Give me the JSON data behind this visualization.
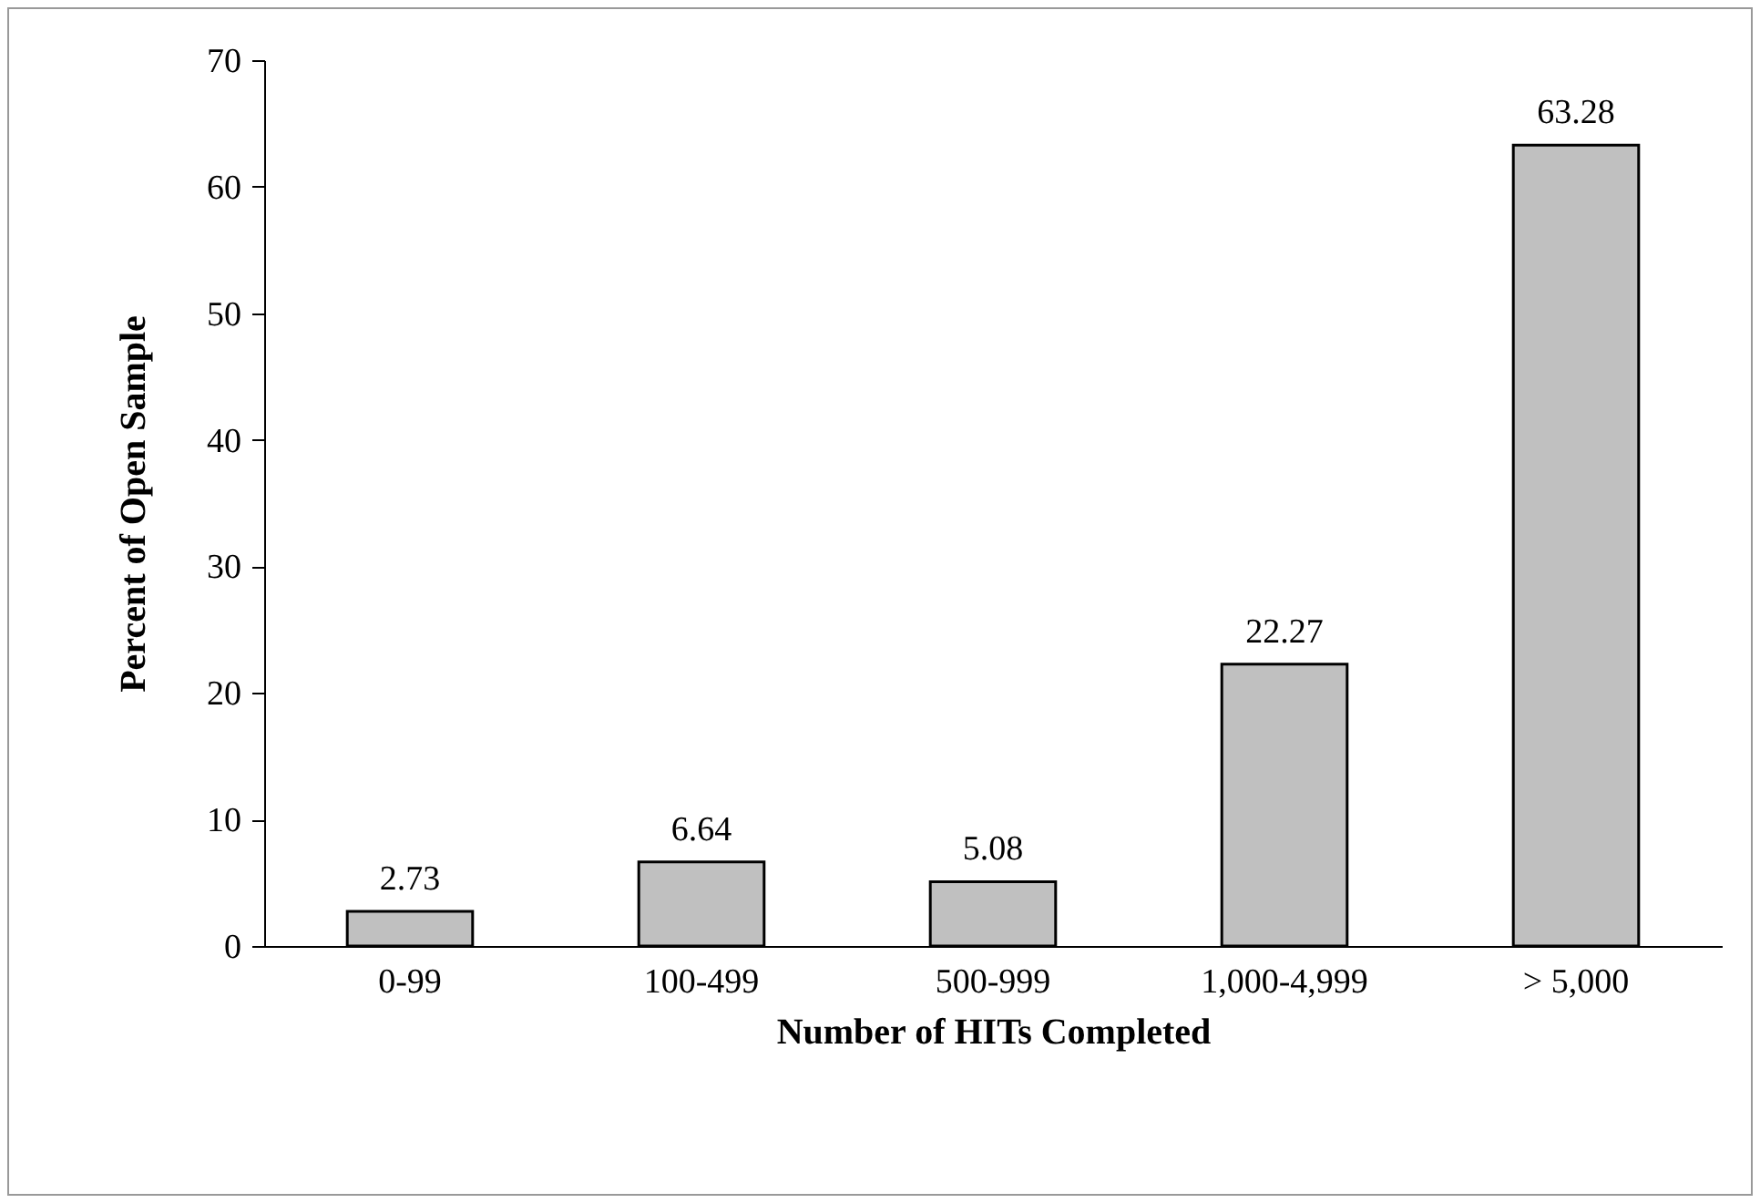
{
  "chart_data": {
    "type": "bar",
    "xlabel": "Number of HITs Completed",
    "ylabel": "Percent of Open Sample",
    "categories": [
      "0-99",
      "100-499",
      "500-999",
      "1,000-4,999",
      "> 5,000"
    ],
    "values": [
      2.73,
      6.64,
      5.08,
      22.27,
      63.28
    ],
    "color": "#c0c0c0",
    "ylim": [
      0,
      70
    ],
    "yticks": [
      0,
      10,
      20,
      30,
      40,
      50,
      60,
      70
    ],
    "data_labels": true,
    "grid": false
  }
}
